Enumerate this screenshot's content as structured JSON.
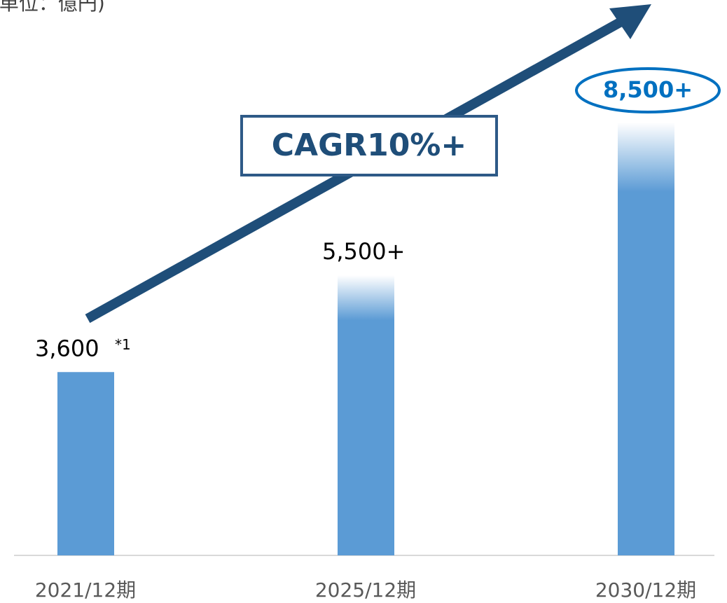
{
  "chart_data": {
    "type": "bar",
    "title": "(単位：億円)",
    "categories": [
      "2021/12期",
      "2025/12期",
      "2030/12期"
    ],
    "values": [
      3600,
      5500,
      8500
    ],
    "value_labels": [
      "3,600",
      "5,500+",
      "8,500+"
    ],
    "color": "#5b9bd5",
    "annotations": [
      "*1",
      "CAGR10%+"
    ]
  }
}
